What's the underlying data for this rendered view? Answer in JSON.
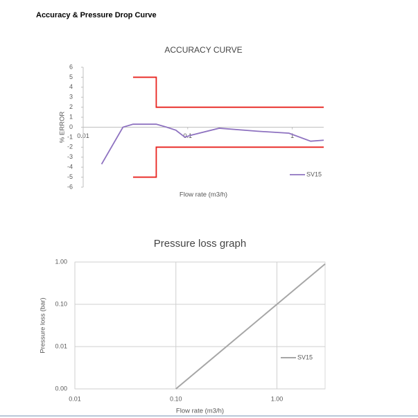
{
  "title": "Accuracy & Pressure Drop Curve",
  "chart_data": [
    {
      "type": "line",
      "title": "ACCURACY CURVE",
      "x_label": "Flow rate (m3/h)",
      "y_label": "% ERROR",
      "xscale": "log",
      "xlim": [
        0.01,
        2
      ],
      "xticks": [
        0.01,
        0.1,
        1
      ],
      "ylim": [
        -6,
        6
      ],
      "yticks": [
        -6,
        -5,
        -4,
        -3,
        -2,
        -1,
        0,
        1,
        2,
        3,
        4,
        5,
        6
      ],
      "grid": false,
      "legend": "lower right",
      "series": [
        {
          "name": "SV15",
          "color": "#8e72c0",
          "x": [
            0.015,
            0.024,
            0.03,
            0.05,
            0.063,
            0.077,
            0.094,
            0.108,
            0.2,
            0.46,
            0.93,
            1.5,
            2
          ],
          "values": [
            -3.7,
            0,
            0.3,
            0.3,
            0,
            -0.3,
            -1.0,
            -0.8,
            -0.1,
            -0.4,
            -0.6,
            -1.4,
            -1.3
          ]
        },
        {
          "color": "#e8231f",
          "x": [
            0.03,
            0.05,
            0.05,
            2
          ],
          "values": [
            5,
            5,
            2,
            2
          ]
        },
        {
          "color": "#e8231f",
          "x": [
            0.03,
            0.05,
            0.05,
            2
          ],
          "values": [
            -5,
            -5,
            -2,
            -2
          ]
        }
      ]
    },
    {
      "type": "line",
      "title": "Pressure loss graph",
      "x_label": "Flow rate (m3/h)",
      "y_label": "Pressure loss (bar)",
      "xscale": "log",
      "yscale": "log",
      "xlim": [
        0.01,
        3
      ],
      "ylim": [
        0.001,
        1
      ],
      "xticks": [
        {
          "value": 0.01,
          "label": "0.01"
        },
        {
          "value": 0.1,
          "label": "0.10"
        },
        {
          "value": 1,
          "label": "1.00"
        }
      ],
      "yticks": [
        {
          "value": 0.001,
          "label": "0.00"
        },
        {
          "value": 0.01,
          "label": "0.01"
        },
        {
          "value": 0.1,
          "label": "0.10"
        },
        {
          "value": 1,
          "label": "1.00"
        }
      ],
      "grid": true,
      "legend": "lower right",
      "series": [
        {
          "name": "SV15",
          "color": "#a6a6a6",
          "x": [
            0.1,
            1,
            3
          ],
          "values": [
            0.001,
            0.1,
            0.9
          ]
        }
      ]
    }
  ]
}
